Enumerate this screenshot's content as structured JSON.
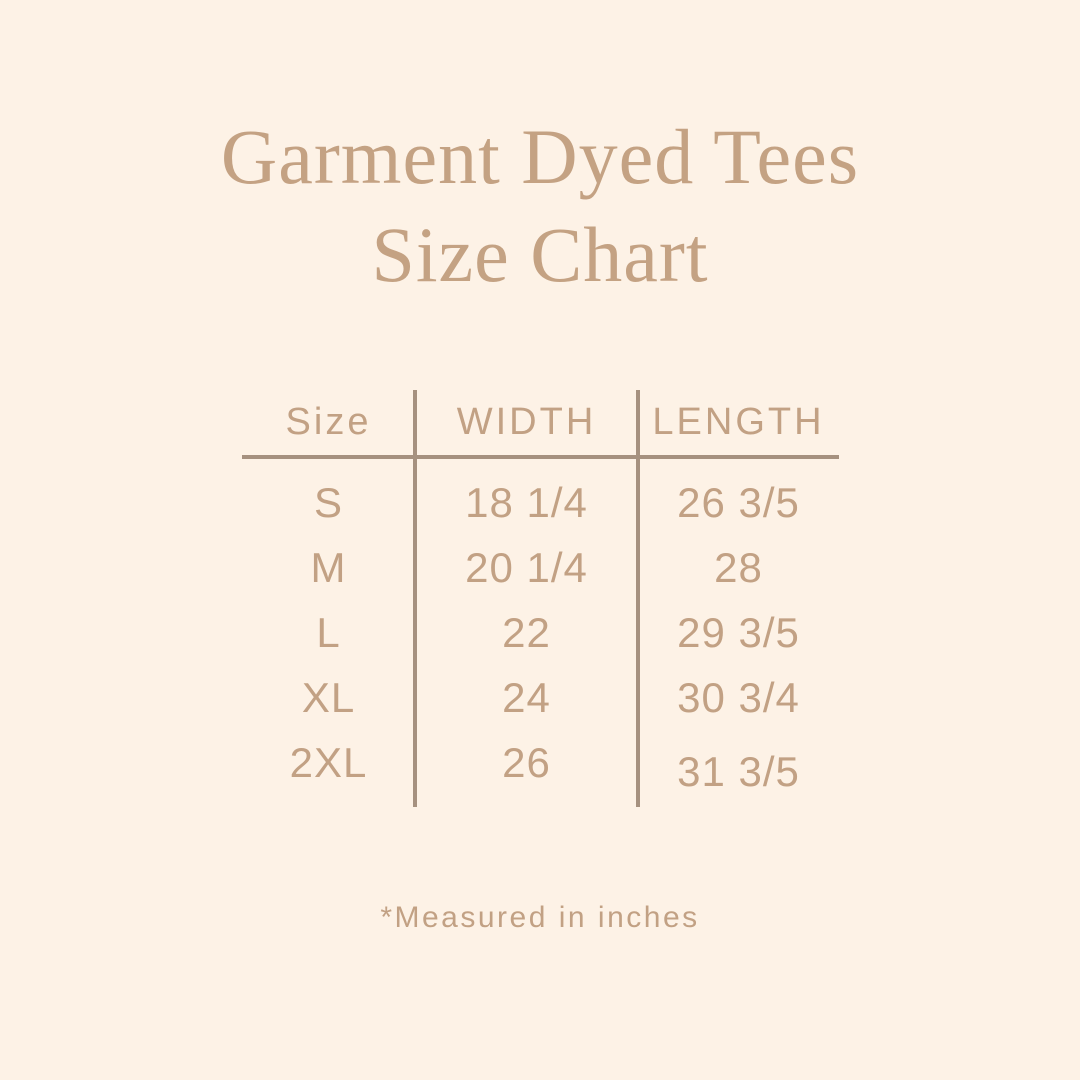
{
  "colors": {
    "background": "#fdf2e6",
    "title_tan": "#c4a283",
    "table_text_tan": "#c2a184",
    "divider_taupe": "#a6917f"
  },
  "title": {
    "line1": "Garment Dyed Tees",
    "line2": "Size Chart"
  },
  "table": {
    "headers": [
      "Size",
      "WIDTH",
      "LENGTH"
    ],
    "rows": [
      {
        "size": "S",
        "width": "18 1/4",
        "length": "26 3/5"
      },
      {
        "size": "M",
        "width": "20 1/4",
        "length": "28"
      },
      {
        "size": "L",
        "width": "22",
        "length": "29 3/5"
      },
      {
        "size": "XL",
        "width": "24",
        "length": "30 3/4"
      },
      {
        "size": "2XL",
        "width": "26",
        "length": "31 3/5"
      }
    ]
  },
  "footnote": "*Measured in inches",
  "chart_data": {
    "type": "table",
    "title": "Garment Dyed Tees Size Chart",
    "columns": [
      "Size",
      "WIDTH",
      "LENGTH"
    ],
    "units": "inches",
    "rows": [
      [
        "S",
        "18 1/4",
        "26 3/5"
      ],
      [
        "M",
        "20 1/4",
        "28"
      ],
      [
        "L",
        "22",
        "29 3/5"
      ],
      [
        "XL",
        "24",
        "30 3/4"
      ],
      [
        "2XL",
        "26",
        "31 3/5"
      ]
    ]
  }
}
